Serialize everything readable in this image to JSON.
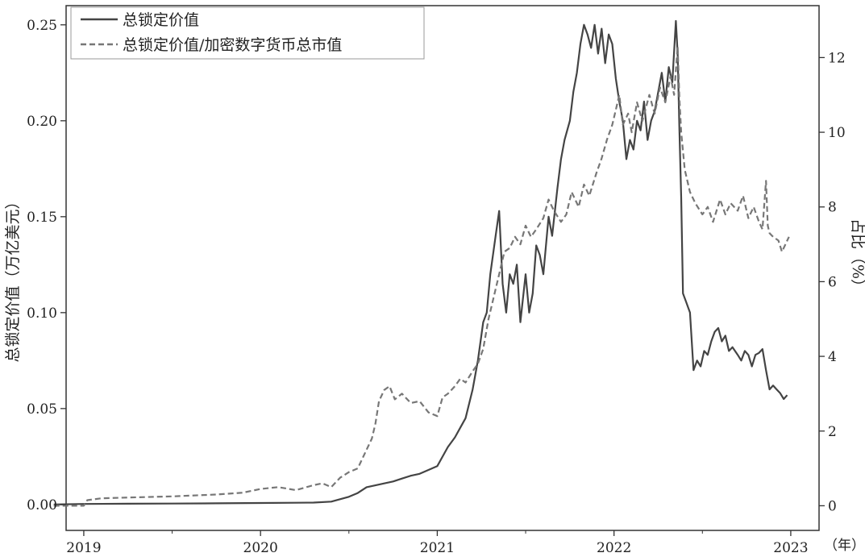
{
  "chart_data": {
    "type": "line",
    "xlabel": "（年）",
    "ylabel": "总锁定价值（万亿美元）",
    "y2label": "占比（%）",
    "xlim": [
      2018.9,
      2023.16
    ],
    "ylim": [
      -0.0135,
      0.26
    ],
    "y2lim": [
      -0.66,
      13.39
    ],
    "grid": false,
    "legend_position": "top-left",
    "x_ticks": [
      2019,
      2020,
      2021,
      2022,
      2023
    ],
    "x_tick_labels": [
      "2019",
      "2020",
      "2021",
      "2022",
      "2023"
    ],
    "y_ticks": [
      0.0,
      0.05,
      0.1,
      0.15,
      0.2,
      0.25
    ],
    "y_tick_labels": [
      "0.00",
      "0.05",
      "0.10",
      "0.15",
      "0.20",
      "0.25"
    ],
    "y2_ticks": [
      0,
      2,
      4,
      6,
      8,
      10,
      12
    ],
    "y2_tick_labels": [
      "0",
      "2",
      "4",
      "6",
      "8",
      "10",
      "12"
    ],
    "series": [
      {
        "name": "总锁定价值",
        "axis": "left",
        "style": "solid",
        "color": "#444444",
        "x": [
          2018.83,
          2019.0,
          2019.25,
          2019.5,
          2019.75,
          2020.0,
          2020.2,
          2020.3,
          2020.4,
          2020.5,
          2020.55,
          2020.6,
          2020.65,
          2020.7,
          2020.75,
          2020.8,
          2020.85,
          2020.9,
          2020.95,
          2021.0,
          2021.03,
          2021.06,
          2021.1,
          2021.13,
          2021.16,
          2021.2,
          2021.23,
          2021.26,
          2021.28,
          2021.3,
          2021.33,
          2021.35,
          2021.37,
          2021.39,
          2021.41,
          2021.43,
          2021.45,
          2021.47,
          2021.5,
          2021.52,
          2021.54,
          2021.56,
          2021.58,
          2021.6,
          2021.63,
          2021.65,
          2021.68,
          2021.7,
          2021.72,
          2021.75,
          2021.77,
          2021.79,
          2021.81,
          2021.83,
          2021.85,
          2021.87,
          2021.89,
          2021.91,
          2021.93,
          2021.95,
          2021.97,
          2021.99,
          2022.01,
          2022.03,
          2022.05,
          2022.07,
          2022.09,
          2022.11,
          2022.13,
          2022.15,
          2022.17,
          2022.19,
          2022.21,
          2022.23,
          2022.25,
          2022.27,
          2022.29,
          2022.31,
          2022.33,
          2022.35,
          2022.36,
          2022.37,
          2022.38,
          2022.39,
          2022.41,
          2022.43,
          2022.45,
          2022.47,
          2022.49,
          2022.51,
          2022.53,
          2022.55,
          2022.57,
          2022.59,
          2022.61,
          2022.63,
          2022.65,
          2022.67,
          2022.7,
          2022.72,
          2022.74,
          2022.76,
          2022.78,
          2022.8,
          2022.82,
          2022.84,
          2022.86,
          2022.87,
          2022.88,
          2022.9,
          2022.92,
          2022.94,
          2022.96,
          2022.98
        ],
        "values": [
          0.0,
          0.0003,
          0.0004,
          0.0005,
          0.0006,
          0.0008,
          0.0009,
          0.001,
          0.0015,
          0.004,
          0.006,
          0.009,
          0.01,
          0.011,
          0.012,
          0.0135,
          0.015,
          0.016,
          0.018,
          0.02,
          0.025,
          0.03,
          0.035,
          0.04,
          0.045,
          0.06,
          0.075,
          0.095,
          0.1,
          0.12,
          0.14,
          0.153,
          0.115,
          0.1,
          0.12,
          0.115,
          0.125,
          0.095,
          0.12,
          0.1,
          0.11,
          0.135,
          0.13,
          0.12,
          0.15,
          0.14,
          0.165,
          0.18,
          0.19,
          0.2,
          0.215,
          0.225,
          0.24,
          0.25,
          0.245,
          0.238,
          0.25,
          0.235,
          0.248,
          0.23,
          0.245,
          0.24,
          0.222,
          0.21,
          0.2,
          0.18,
          0.19,
          0.185,
          0.2,
          0.195,
          0.21,
          0.19,
          0.2,
          0.205,
          0.215,
          0.225,
          0.21,
          0.228,
          0.22,
          0.252,
          0.235,
          0.195,
          0.16,
          0.11,
          0.105,
          0.1,
          0.07,
          0.075,
          0.072,
          0.08,
          0.078,
          0.085,
          0.09,
          0.092,
          0.085,
          0.088,
          0.08,
          0.082,
          0.078,
          0.075,
          0.08,
          0.078,
          0.072,
          0.078,
          0.079,
          0.081,
          0.07,
          0.065,
          0.06,
          0.062,
          0.06,
          0.058,
          0.055,
          0.057
        ]
      },
      {
        "name": "总锁定价值/加密数字货币总市值",
        "axis": "right",
        "style": "dashed",
        "color": "#777777",
        "x": [
          2018.83,
          2019.0,
          2019.02,
          2019.1,
          2019.25,
          2019.5,
          2019.75,
          2019.9,
          2020.0,
          2020.1,
          2020.2,
          2020.3,
          2020.35,
          2020.4,
          2020.45,
          2020.5,
          2020.55,
          2020.58,
          2020.61,
          2020.63,
          2020.65,
          2020.67,
          2020.7,
          2020.73,
          2020.76,
          2020.8,
          2020.85,
          2020.9,
          2020.95,
          2021.0,
          2021.03,
          2021.06,
          2021.1,
          2021.13,
          2021.16,
          2021.2,
          2021.23,
          2021.26,
          2021.29,
          2021.32,
          2021.35,
          2021.38,
          2021.41,
          2021.44,
          2021.47,
          2021.5,
          2021.53,
          2021.56,
          2021.6,
          2021.63,
          2021.66,
          2021.7,
          2021.73,
          2021.76,
          2021.8,
          2021.83,
          2021.86,
          2021.9,
          2021.93,
          2021.96,
          2021.99,
          2022.01,
          2022.03,
          2022.05,
          2022.08,
          2022.1,
          2022.13,
          2022.16,
          2022.2,
          2022.23,
          2022.26,
          2022.29,
          2022.32,
          2022.34,
          2022.36,
          2022.37,
          2022.38,
          2022.4,
          2022.43,
          2022.46,
          2022.5,
          2022.53,
          2022.56,
          2022.6,
          2022.63,
          2022.66,
          2022.7,
          2022.73,
          2022.76,
          2022.79,
          2022.82,
          2022.84,
          2022.86,
          2022.87,
          2022.88,
          2022.9,
          2022.93,
          2022.95,
          2022.97,
          2022.99
        ],
        "values": [
          0.0,
          0.0,
          0.15,
          0.2,
          0.22,
          0.25,
          0.3,
          0.35,
          0.45,
          0.5,
          0.42,
          0.55,
          0.6,
          0.5,
          0.75,
          0.9,
          1.0,
          1.3,
          1.6,
          1.8,
          2.2,
          2.8,
          3.1,
          3.2,
          2.85,
          3.0,
          2.75,
          2.8,
          2.5,
          2.4,
          2.9,
          3.0,
          3.2,
          3.4,
          3.3,
          3.6,
          3.8,
          4.2,
          5.0,
          5.6,
          6.2,
          6.8,
          6.9,
          7.2,
          7.0,
          7.5,
          7.2,
          7.4,
          7.7,
          8.2,
          7.9,
          7.6,
          7.8,
          8.4,
          8.0,
          8.6,
          8.3,
          8.9,
          9.3,
          9.8,
          10.2,
          10.6,
          11.0,
          10.2,
          10.5,
          10.0,
          10.8,
          10.3,
          11.0,
          10.5,
          11.2,
          10.8,
          11.5,
          11.0,
          12.3,
          10.9,
          10.0,
          9.0,
          8.4,
          8.1,
          7.8,
          8.0,
          7.6,
          8.2,
          7.8,
          8.1,
          7.9,
          8.3,
          7.7,
          8.0,
          7.6,
          7.4,
          8.7,
          7.5,
          7.3,
          7.2,
          7.1,
          6.8,
          7.0,
          7.2
        ]
      }
    ]
  }
}
